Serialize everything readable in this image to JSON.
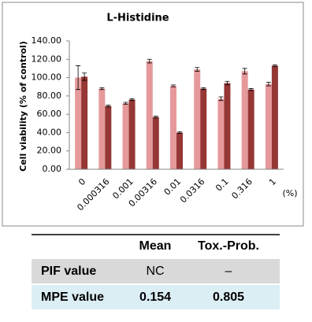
{
  "chart_data": {
    "type": "bar",
    "title": "L-Histidine",
    "y_label": "Cell viability (% of control)",
    "x_unit": "(%)",
    "categories": [
      "0",
      "0.000316",
      "0.001",
      "0.00316",
      "0.01",
      "0.0316",
      "0.1",
      "0.316",
      "1"
    ],
    "series": [
      {
        "color": "#e6999b",
        "values": [
          100,
          88,
          72,
          118,
          91,
          109,
          77,
          107,
          93
        ],
        "errors": [
          13,
          1,
          1,
          2,
          1,
          2,
          2,
          3,
          2
        ]
      },
      {
        "color": "#953735",
        "values": [
          101,
          69,
          76,
          57,
          40,
          88,
          94,
          87,
          113
        ],
        "errors": [
          4,
          1,
          1,
          1,
          1,
          1,
          2,
          1,
          1
        ]
      }
    ],
    "ylim": [
      0,
      140
    ],
    "yticks": [
      {
        "value": 0,
        "label": "0.00"
      },
      {
        "value": 20,
        "label": "20.00"
      },
      {
        "value": 40,
        "label": "40.00"
      },
      {
        "value": 60,
        "label": "60.00"
      },
      {
        "value": 80,
        "label": "80.00"
      },
      {
        "value": 100,
        "label": "100.00"
      },
      {
        "value": 120,
        "label": "120.00"
      },
      {
        "value": 140,
        "label": "140.00"
      }
    ],
    "grid": false
  },
  "table": {
    "columns": [
      "Mean",
      "Tox.-Prob."
    ],
    "rows": [
      [
        "PIF value",
        "NC",
        "–"
      ],
      [
        "MPE value",
        "0.154",
        "0.805"
      ]
    ]
  }
}
